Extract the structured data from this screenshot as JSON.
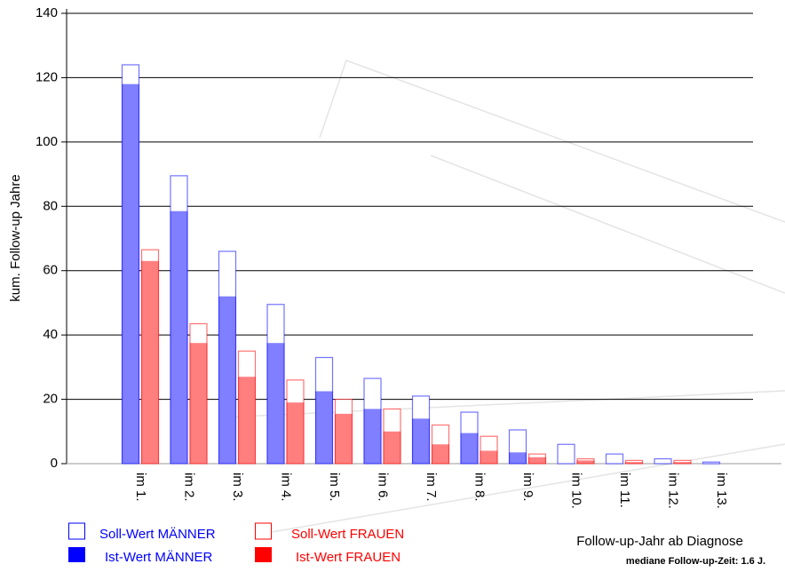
{
  "chart_data": {
    "type": "bar",
    "ylabel": "kum. Follow-up Jahre",
    "xlabel": "Follow-up-Jahr ab Diagnose",
    "note": "mediane Follow-up-Zeit: 1.6 J.",
    "categories": [
      "im 1.",
      "im 2.",
      "im 3.",
      "im 4.",
      "im 5.",
      "im 6.",
      "im 7.",
      "im 8.",
      "im 9.",
      "im 10.",
      "im 11.",
      "im 12.",
      "im 13."
    ],
    "series": [
      {
        "name": "Soll-Wert MÄNNER",
        "color": "#0000ff",
        "style": "outline",
        "group": 0,
        "values": [
          124,
          89.5,
          66,
          49.5,
          33,
          26.5,
          21,
          16,
          10.5,
          6,
          3,
          1.5,
          0.5
        ]
      },
      {
        "name": "Ist-Wert MÄNNER",
        "color": "#0000ff",
        "style": "filled",
        "group": 0,
        "values": [
          118,
          78.5,
          52,
          37.5,
          22.5,
          17,
          14,
          9.5,
          3.5,
          0,
          0,
          0,
          0
        ]
      },
      {
        "name": "Soll-Wert FRAUEN",
        "color": "#ff0000",
        "style": "outline",
        "group": 1,
        "values": [
          66.5,
          43.5,
          35,
          26,
          20,
          17,
          12,
          8.5,
          3,
          1.5,
          1,
          1,
          0
        ]
      },
      {
        "name": "Ist-Wert FRAUEN",
        "color": "#ff0000",
        "style": "filled",
        "group": 1,
        "values": [
          63,
          37.5,
          27,
          19,
          15.5,
          10,
          6,
          4,
          2,
          1,
          0.5,
          0.5,
          0
        ]
      }
    ],
    "ylim": [
      0,
      140
    ],
    "yticks": [
      0,
      20,
      40,
      60,
      80,
      100,
      120,
      140
    ],
    "grid": true
  }
}
